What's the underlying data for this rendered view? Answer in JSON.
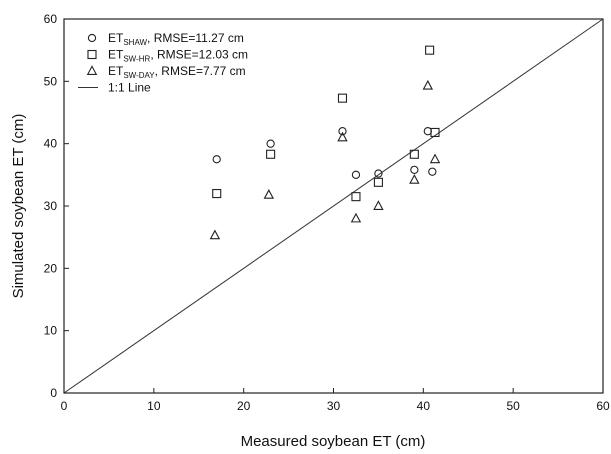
{
  "chart_data": {
    "type": "scatter",
    "title": "",
    "xlabel": "Measured soybean ET (cm)",
    "ylabel": "Simulated soybean ET (cm)",
    "xlim": [
      0,
      60
    ],
    "ylim": [
      0,
      60
    ],
    "xticks": [
      "0",
      "10",
      "20",
      "30",
      "40",
      "50",
      "60"
    ],
    "yticks": [
      "0",
      "10",
      "20",
      "30",
      "40",
      "50",
      "60"
    ],
    "grid": false,
    "legend_position": "top-left",
    "legend": [
      {
        "marker": "circle",
        "main": "ET",
        "sub": "SHAW",
        "rest": ", RMSE=11.27 cm"
      },
      {
        "marker": "square",
        "main": "ET",
        "sub": "SW-HR",
        "rest": ", RMSE=12.03 cm"
      },
      {
        "marker": "triangle",
        "main": "ET",
        "sub": "SW-DAY",
        "rest": ", RMSE=7.77 cm"
      },
      {
        "marker": "line",
        "main": "1:1 Line",
        "sub": "",
        "rest": ""
      }
    ],
    "series": [
      {
        "marker": "circle",
        "points": [
          [
            17,
            37.5
          ],
          [
            23,
            40
          ],
          [
            31,
            42
          ],
          [
            32.5,
            35
          ],
          [
            35,
            35.2
          ],
          [
            39,
            35.8
          ],
          [
            40.5,
            42
          ],
          [
            41,
            35.5
          ]
        ]
      },
      {
        "marker": "square",
        "points": [
          [
            17,
            32
          ],
          [
            23,
            38.3
          ],
          [
            31,
            47.3
          ],
          [
            32.5,
            31.5
          ],
          [
            35,
            33.8
          ],
          [
            39,
            38.3
          ],
          [
            40.7,
            55
          ],
          [
            41.3,
            41.8
          ]
        ]
      },
      {
        "marker": "triangle",
        "points": [
          [
            16.8,
            25.3
          ],
          [
            22.8,
            31.8
          ],
          [
            31,
            41
          ],
          [
            32.5,
            28
          ],
          [
            35,
            30
          ],
          [
            39,
            34.2
          ],
          [
            40.5,
            49.3
          ],
          [
            41.3,
            37.5
          ]
        ]
      }
    ],
    "reference_line": {
      "from": [
        0,
        0
      ],
      "to": [
        60,
        60
      ]
    }
  }
}
